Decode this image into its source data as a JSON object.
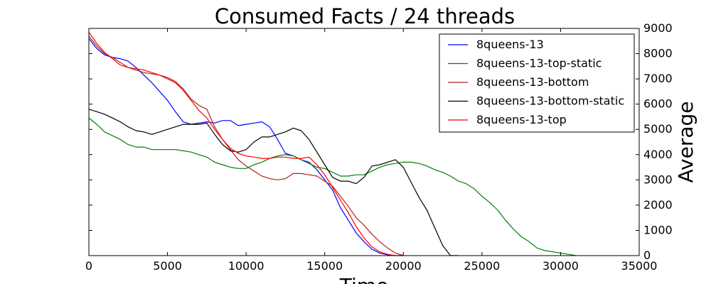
{
  "chart_data": {
    "type": "line",
    "title": "Consumed Facts / 24 threads",
    "xlabel": "Time",
    "ylabel": "Average",
    "xlim": [
      0,
      35000
    ],
    "ylim": [
      0,
      9000
    ],
    "x_ticks": [
      "0",
      "5000",
      "10000",
      "15000",
      "20000",
      "25000",
      "30000",
      "35000"
    ],
    "y_ticks": [
      "0",
      "1000",
      "2000",
      "3000",
      "4000",
      "5000",
      "6000",
      "7000",
      "8000",
      "9000"
    ],
    "y_axis_side": "right",
    "grid": false,
    "legend_position": "top-right",
    "series": [
      {
        "name": "8queens-13",
        "color": "#0000ff",
        "x": [
          0,
          500,
          1000,
          1500,
          2000,
          2500,
          3000,
          3500,
          4000,
          4500,
          5000,
          5500,
          6000,
          6500,
          7000,
          7500,
          8000,
          8500,
          9000,
          9500,
          10000,
          10500,
          11000,
          11500,
          12000,
          12500,
          13000,
          13500,
          14000,
          14500,
          15000,
          15500,
          16000,
          16500,
          17000,
          17500,
          18000,
          18500,
          19000,
          19500,
          20000
        ],
        "y": [
          8600,
          8200,
          7950,
          7850,
          7800,
          7700,
          7450,
          7150,
          6850,
          6500,
          6150,
          5700,
          5300,
          5200,
          5250,
          5300,
          5250,
          5350,
          5350,
          5150,
          5200,
          5250,
          5300,
          5100,
          4600,
          4050,
          3950,
          3800,
          3700,
          3400,
          3000,
          2600,
          1900,
          1400,
          900,
          550,
          250,
          100,
          30,
          0,
          0
        ]
      },
      {
        "name": "8queens-13-top-static",
        "color": "#008000",
        "x": [
          0,
          500,
          1000,
          1500,
          2000,
          2500,
          3000,
          3500,
          4000,
          4500,
          5000,
          5500,
          6000,
          6500,
          7000,
          7500,
          8000,
          8500,
          9000,
          9500,
          10000,
          10500,
          11000,
          11500,
          12000,
          12500,
          13000,
          13500,
          14000,
          14500,
          15000,
          15500,
          16000,
          16500,
          17000,
          17500,
          18000,
          18500,
          19000,
          19500,
          20000,
          20500,
          21000,
          21500,
          22000,
          22500,
          23000,
          23500,
          24000,
          24500,
          25000,
          25500,
          26000,
          26500,
          27000,
          27500,
          28000,
          28500,
          29000,
          29500,
          30000,
          30500,
          31000
        ],
        "y": [
          5450,
          5200,
          4900,
          4750,
          4600,
          4400,
          4300,
          4300,
          4200,
          4200,
          4200,
          4200,
          4150,
          4100,
          4000,
          3900,
          3700,
          3600,
          3500,
          3450,
          3450,
          3600,
          3700,
          3850,
          3950,
          4000,
          3950,
          3800,
          3650,
          3500,
          3450,
          3300,
          3150,
          3150,
          3200,
          3200,
          3350,
          3500,
          3600,
          3650,
          3700,
          3700,
          3650,
          3550,
          3400,
          3300,
          3150,
          2950,
          2850,
          2650,
          2350,
          2100,
          1800,
          1400,
          1050,
          750,
          550,
          300,
          200,
          150,
          100,
          50,
          0
        ]
      },
      {
        "name": "8queens-13-bottom",
        "color": "#b22222",
        "x": [
          0,
          500,
          1000,
          1500,
          2000,
          2500,
          3000,
          3500,
          4000,
          4500,
          5000,
          5500,
          6000,
          6500,
          7000,
          7500,
          8000,
          8500,
          9000,
          9500,
          10000,
          10500,
          11000,
          11500,
          12000,
          12500,
          13000,
          13500,
          14000,
          14500,
          15000,
          15500,
          16000,
          16500,
          17000,
          17500,
          18000,
          18500,
          19000,
          19500,
          20000
        ],
        "y": [
          8700,
          8300,
          8000,
          7850,
          7650,
          7450,
          7350,
          7250,
          7200,
          7150,
          7050,
          6900,
          6600,
          6200,
          5950,
          5800,
          5100,
          4600,
          4200,
          3800,
          3550,
          3350,
          3150,
          3050,
          3000,
          3050,
          3250,
          3250,
          3200,
          3150,
          2950,
          2750,
          2350,
          1950,
          1500,
          1200,
          850,
          550,
          300,
          100,
          0
        ]
      },
      {
        "name": "8queens-13-bottom-static",
        "color": "#000000",
        "x": [
          0,
          500,
          1000,
          1500,
          2000,
          2500,
          3000,
          3500,
          4000,
          4500,
          5000,
          5500,
          6000,
          6500,
          7000,
          7500,
          8000,
          8500,
          9000,
          9500,
          10000,
          10500,
          11000,
          11500,
          12000,
          12500,
          13000,
          13500,
          14000,
          14500,
          15000,
          15500,
          16000,
          16500,
          17000,
          17500,
          18000,
          18500,
          19000,
          19500,
          20000,
          20500,
          21000,
          21500,
          22000,
          22500,
          23000,
          23500
        ],
        "y": [
          5800,
          5700,
          5600,
          5450,
          5300,
          5100,
          4950,
          4900,
          4800,
          4900,
          5000,
          5100,
          5200,
          5200,
          5200,
          5250,
          4800,
          4400,
          4150,
          4100,
          4200,
          4500,
          4700,
          4700,
          4800,
          4900,
          5050,
          4950,
          4600,
          4100,
          3600,
          3100,
          2950,
          2950,
          2850,
          3100,
          3550,
          3600,
          3700,
          3800,
          3500,
          2900,
          2300,
          1800,
          1100,
          400,
          0,
          0
        ]
      },
      {
        "name": "8queens-13-top",
        "color": "#ff0000",
        "x": [
          0,
          500,
          1000,
          1500,
          2000,
          2500,
          3000,
          3500,
          4000,
          4500,
          5000,
          5500,
          6000,
          6500,
          7000,
          7500,
          8000,
          8500,
          9000,
          9500,
          10000,
          10500,
          11000,
          11500,
          12000,
          12500,
          13000,
          13500,
          14000,
          14500,
          15000,
          15500,
          16000,
          16500,
          17000,
          17500,
          18000,
          18500,
          19000,
          19500
        ],
        "y": [
          8850,
          8400,
          8050,
          7800,
          7550,
          7450,
          7400,
          7350,
          7250,
          7150,
          7000,
          6850,
          6550,
          6150,
          5750,
          5450,
          5000,
          4600,
          4250,
          4050,
          3950,
          3900,
          3850,
          3850,
          3900,
          3900,
          3850,
          3850,
          3900,
          3600,
          3200,
          2700,
          2200,
          1700,
          1150,
          700,
          350,
          150,
          50,
          0
        ]
      }
    ]
  }
}
